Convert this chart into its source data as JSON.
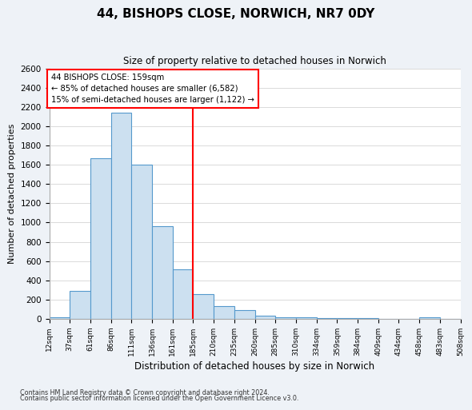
{
  "title": "44, BISHOPS CLOSE, NORWICH, NR7 0DY",
  "subtitle": "Size of property relative to detached houses in Norwich",
  "xlabel": "Distribution of detached houses by size in Norwich",
  "ylabel": "Number of detached properties",
  "bin_labels": [
    "12sqm",
    "37sqm",
    "61sqm",
    "86sqm",
    "111sqm",
    "136sqm",
    "161sqm",
    "185sqm",
    "210sqm",
    "235sqm",
    "260sqm",
    "285sqm",
    "310sqm",
    "334sqm",
    "359sqm",
    "384sqm",
    "409sqm",
    "434sqm",
    "458sqm",
    "483sqm",
    "508sqm"
  ],
  "bar_values": [
    20,
    290,
    1670,
    2140,
    1600,
    960,
    510,
    255,
    130,
    95,
    35,
    20,
    15,
    10,
    5,
    5,
    3,
    3,
    20,
    3
  ],
  "bar_color": "#cce0f0",
  "bar_edge_color": "#5599cc",
  "vline_color": "red",
  "annotation_line1": "44 BISHOPS CLOSE: 159sqm",
  "annotation_line2": "← 85% of detached houses are smaller (6,582)",
  "annotation_line3": "15% of semi-detached houses are larger (1,122) →",
  "ylim": [
    0,
    2600
  ],
  "yticks": [
    0,
    200,
    400,
    600,
    800,
    1000,
    1200,
    1400,
    1600,
    1800,
    2000,
    2200,
    2400,
    2600
  ],
  "footer_line1": "Contains HM Land Registry data © Crown copyright and database right 2024.",
  "footer_line2": "Contains public sector information licensed under the Open Government Licence v3.0.",
  "background_color": "#eef2f7",
  "plot_background": "#ffffff"
}
